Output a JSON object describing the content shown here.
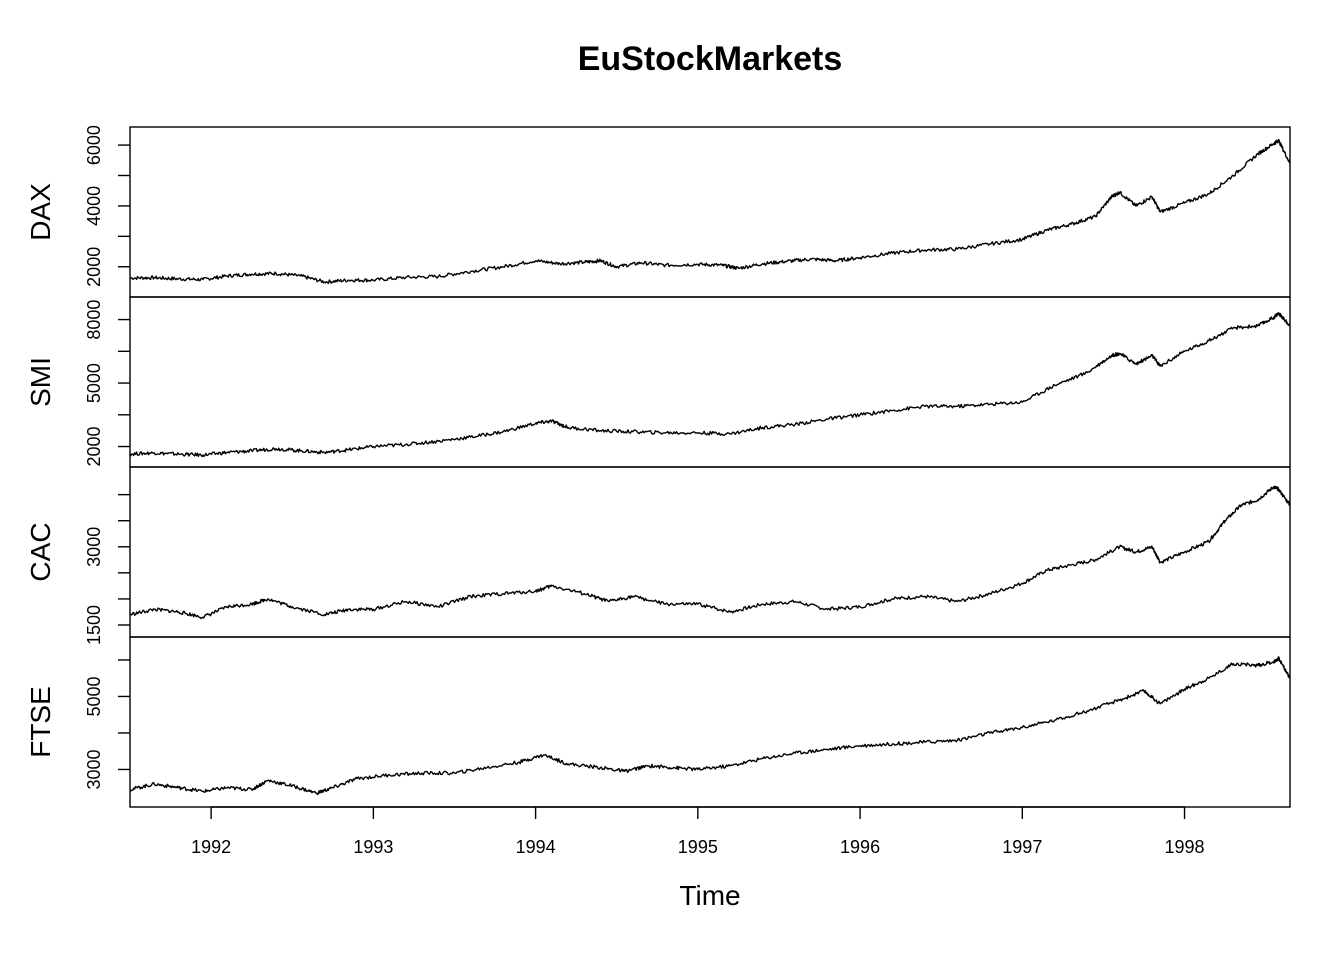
{
  "chart_data": {
    "type": "line",
    "title": "EuStockMarkets",
    "xlabel": "Time",
    "xlim": [
      1991.5,
      1998.65
    ],
    "x_ticks": [
      "1992",
      "1993",
      "1994",
      "1995",
      "1996",
      "1997",
      "1998"
    ],
    "x_tick_values": [
      1992,
      1993,
      1994,
      1995,
      1996,
      1997,
      1998
    ],
    "grid": false,
    "legend": "none",
    "line_color": "#000000",
    "panels": [
      {
        "name": "DAX",
        "ylim": [
          1400,
          6200
        ],
        "y_ticks": [
          2000,
          3000,
          4000,
          5000,
          6000
        ],
        "y_tick_labels": [
          "2000",
          "",
          "4000",
          "",
          "6000"
        ],
        "points": [
          [
            1991.5,
            1630
          ],
          [
            1991.65,
            1640
          ],
          [
            1991.8,
            1600
          ],
          [
            1991.95,
            1580
          ],
          [
            1992.1,
            1700
          ],
          [
            1992.25,
            1760
          ],
          [
            1992.4,
            1780
          ],
          [
            1992.55,
            1700
          ],
          [
            1992.7,
            1500
          ],
          [
            1992.85,
            1560
          ],
          [
            1993.0,
            1560
          ],
          [
            1993.2,
            1650
          ],
          [
            1993.4,
            1680
          ],
          [
            1993.6,
            1850
          ],
          [
            1993.8,
            2000
          ],
          [
            1994.0,
            2200
          ],
          [
            1994.15,
            2100
          ],
          [
            1994.3,
            2150
          ],
          [
            1994.4,
            2200
          ],
          [
            1994.5,
            2000
          ],
          [
            1994.65,
            2130
          ],
          [
            1994.8,
            2050
          ],
          [
            1995.0,
            2080
          ],
          [
            1995.15,
            2050
          ],
          [
            1995.25,
            1950
          ],
          [
            1995.4,
            2100
          ],
          [
            1995.55,
            2180
          ],
          [
            1995.7,
            2250
          ],
          [
            1995.85,
            2200
          ],
          [
            1996.0,
            2300
          ],
          [
            1996.2,
            2450
          ],
          [
            1996.4,
            2550
          ],
          [
            1996.6,
            2580
          ],
          [
            1996.8,
            2750
          ],
          [
            1997.0,
            2900
          ],
          [
            1997.15,
            3200
          ],
          [
            1997.3,
            3400
          ],
          [
            1997.45,
            3650
          ],
          [
            1997.55,
            4300
          ],
          [
            1997.6,
            4450
          ],
          [
            1997.7,
            4000
          ],
          [
            1997.8,
            4300
          ],
          [
            1997.85,
            3800
          ],
          [
            1998.0,
            4100
          ],
          [
            1998.15,
            4400
          ],
          [
            1998.3,
            5000
          ],
          [
            1998.45,
            5700
          ],
          [
            1998.55,
            6050
          ],
          [
            1998.58,
            6150
          ],
          [
            1998.65,
            5400
          ]
        ]
      },
      {
        "name": "SMI",
        "ylim": [
          1600,
          8500
        ],
        "y_ticks": [
          2000,
          3500,
          5000,
          6500,
          8000
        ],
        "y_tick_labels": [
          "2000",
          "",
          "5000",
          "",
          "8000"
        ],
        "points": [
          [
            1991.5,
            1650
          ],
          [
            1991.65,
            1700
          ],
          [
            1991.8,
            1640
          ],
          [
            1991.95,
            1600
          ],
          [
            1992.1,
            1720
          ],
          [
            1992.25,
            1800
          ],
          [
            1992.4,
            1900
          ],
          [
            1992.55,
            1800
          ],
          [
            1992.7,
            1720
          ],
          [
            1992.85,
            1850
          ],
          [
            1993.0,
            2000
          ],
          [
            1993.2,
            2100
          ],
          [
            1993.4,
            2250
          ],
          [
            1993.6,
            2450
          ],
          [
            1993.8,
            2700
          ],
          [
            1994.0,
            3100
          ],
          [
            1994.1,
            3200
          ],
          [
            1994.2,
            2900
          ],
          [
            1994.4,
            2750
          ],
          [
            1994.6,
            2700
          ],
          [
            1994.8,
            2650
          ],
          [
            1995.0,
            2650
          ],
          [
            1995.2,
            2600
          ],
          [
            1995.4,
            2900
          ],
          [
            1995.6,
            3050
          ],
          [
            1995.8,
            3300
          ],
          [
            1996.0,
            3500
          ],
          [
            1996.2,
            3700
          ],
          [
            1996.4,
            3900
          ],
          [
            1996.6,
            3900
          ],
          [
            1996.8,
            4000
          ],
          [
            1997.0,
            4100
          ],
          [
            1997.2,
            4900
          ],
          [
            1997.4,
            5500
          ],
          [
            1997.55,
            6300
          ],
          [
            1997.6,
            6400
          ],
          [
            1997.7,
            5900
          ],
          [
            1997.8,
            6300
          ],
          [
            1997.85,
            5800
          ],
          [
            1998.0,
            6500
          ],
          [
            1998.15,
            7000
          ],
          [
            1998.3,
            7600
          ],
          [
            1998.45,
            7700
          ],
          [
            1998.55,
            8100
          ],
          [
            1998.58,
            8300
          ],
          [
            1998.65,
            7700
          ]
        ]
      },
      {
        "name": "CAC",
        "ylim": [
          1500,
          4300
        ],
        "y_ticks": [
          1500,
          2000,
          2500,
          3000,
          3500,
          4000
        ],
        "y_tick_labels": [
          "1500",
          "",
          "",
          "3000",
          "",
          ""
        ],
        "points": [
          [
            1991.5,
            1700
          ],
          [
            1991.65,
            1800
          ],
          [
            1991.8,
            1750
          ],
          [
            1991.95,
            1650
          ],
          [
            1992.1,
            1850
          ],
          [
            1992.25,
            1900
          ],
          [
            1992.35,
            2000
          ],
          [
            1992.5,
            1850
          ],
          [
            1992.7,
            1700
          ],
          [
            1992.85,
            1800
          ],
          [
            1993.0,
            1800
          ],
          [
            1993.2,
            1950
          ],
          [
            1993.4,
            1850
          ],
          [
            1993.6,
            2050
          ],
          [
            1993.8,
            2100
          ],
          [
            1994.0,
            2150
          ],
          [
            1994.1,
            2250
          ],
          [
            1994.3,
            2100
          ],
          [
            1994.45,
            1950
          ],
          [
            1994.6,
            2050
          ],
          [
            1994.8,
            1900
          ],
          [
            1995.0,
            1900
          ],
          [
            1995.2,
            1750
          ],
          [
            1995.4,
            1900
          ],
          [
            1995.6,
            1950
          ],
          [
            1995.8,
            1800
          ],
          [
            1996.0,
            1850
          ],
          [
            1996.2,
            2000
          ],
          [
            1996.4,
            2050
          ],
          [
            1996.6,
            1950
          ],
          [
            1996.8,
            2100
          ],
          [
            1997.0,
            2300
          ],
          [
            1997.15,
            2550
          ],
          [
            1997.3,
            2650
          ],
          [
            1997.45,
            2750
          ],
          [
            1997.6,
            3000
          ],
          [
            1997.7,
            2900
          ],
          [
            1997.8,
            3000
          ],
          [
            1997.85,
            2700
          ],
          [
            1998.0,
            2900
          ],
          [
            1998.15,
            3100
          ],
          [
            1998.25,
            3500
          ],
          [
            1998.35,
            3800
          ],
          [
            1998.45,
            3900
          ],
          [
            1998.55,
            4150
          ],
          [
            1998.58,
            4100
          ],
          [
            1998.65,
            3800
          ]
        ]
      },
      {
        "name": "FTSE",
        "ylim": [
          2300,
          6300
        ],
        "y_ticks": [
          3000,
          4000,
          5000,
          6000
        ],
        "y_tick_labels": [
          "3000",
          "",
          "5000",
          ""
        ],
        "points": [
          [
            1991.5,
            2450
          ],
          [
            1991.65,
            2600
          ],
          [
            1991.8,
            2500
          ],
          [
            1991.95,
            2400
          ],
          [
            1992.1,
            2500
          ],
          [
            1992.25,
            2450
          ],
          [
            1992.35,
            2700
          ],
          [
            1992.5,
            2550
          ],
          [
            1992.65,
            2350
          ],
          [
            1992.75,
            2500
          ],
          [
            1992.9,
            2750
          ],
          [
            1993.1,
            2850
          ],
          [
            1993.3,
            2900
          ],
          [
            1993.5,
            2900
          ],
          [
            1993.7,
            3050
          ],
          [
            1993.9,
            3200
          ],
          [
            1994.05,
            3400
          ],
          [
            1994.2,
            3150
          ],
          [
            1994.4,
            3050
          ],
          [
            1994.55,
            2950
          ],
          [
            1994.7,
            3100
          ],
          [
            1994.85,
            3050
          ],
          [
            1995.0,
            3000
          ],
          [
            1995.2,
            3100
          ],
          [
            1995.4,
            3300
          ],
          [
            1995.6,
            3450
          ],
          [
            1995.8,
            3550
          ],
          [
            1996.0,
            3650
          ],
          [
            1996.2,
            3700
          ],
          [
            1996.4,
            3750
          ],
          [
            1996.6,
            3800
          ],
          [
            1996.8,
            4000
          ],
          [
            1997.0,
            4150
          ],
          [
            1997.2,
            4350
          ],
          [
            1997.4,
            4600
          ],
          [
            1997.6,
            4900
          ],
          [
            1997.75,
            5150
          ],
          [
            1997.85,
            4800
          ],
          [
            1998.0,
            5200
          ],
          [
            1998.15,
            5500
          ],
          [
            1998.3,
            5900
          ],
          [
            1998.45,
            5850
          ],
          [
            1998.55,
            5950
          ],
          [
            1998.58,
            6050
          ],
          [
            1998.65,
            5500
          ]
        ]
      }
    ]
  }
}
